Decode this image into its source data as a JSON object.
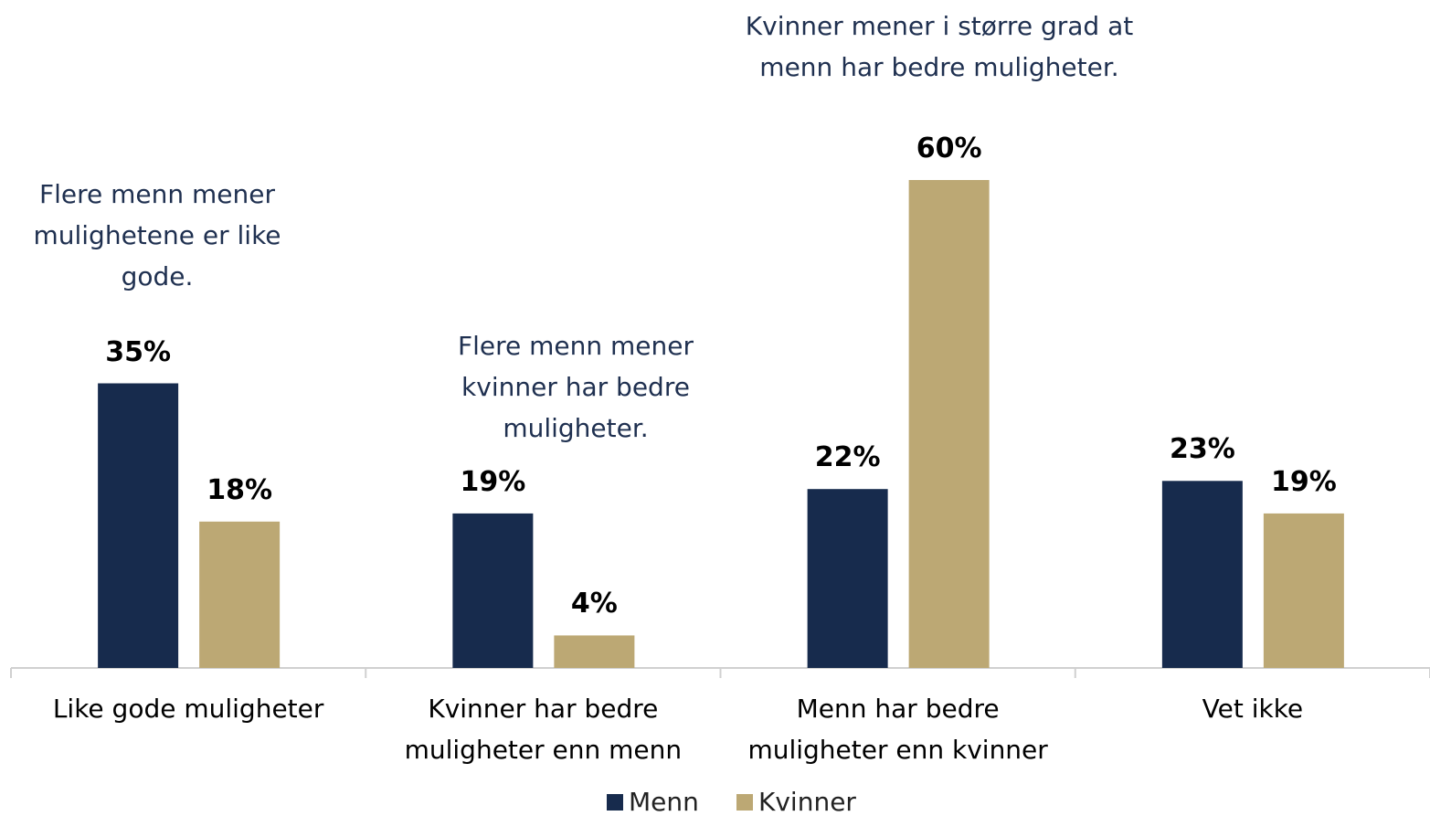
{
  "chart_data": {
    "type": "bar",
    "categories": [
      "Like gode muligheter",
      "Kvinner har bedre muligheter enn menn",
      "Menn har bedre muligheter enn kvinner",
      "Vet ikke"
    ],
    "series": [
      {
        "name": "Menn",
        "color": "#172b4d",
        "values": [
          35,
          19,
          22,
          23
        ],
        "value_labels": [
          "35%",
          "19%",
          "22%",
          "23%"
        ]
      },
      {
        "name": "Kvinner",
        "color": "#bca874",
        "values": [
          18,
          4,
          60,
          19
        ],
        "value_labels": [
          "18%",
          "4%",
          "60%",
          "19%"
        ]
      }
    ],
    "ylim": [
      0,
      60
    ],
    "annotations": [
      "Flere menn mener mulighetene er like gode.",
      "Flere menn mener kvinner har bedre muligheter.",
      "Kvinner mener i større grad at menn har bedre muligheter."
    ]
  }
}
